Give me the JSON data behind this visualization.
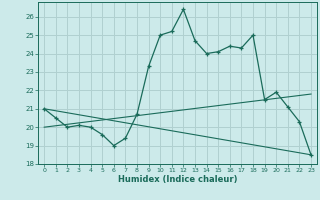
{
  "xlabel": "Humidex (Indice chaleur)",
  "bg_color": "#cceaea",
  "grid_color": "#b0d0d0",
  "line_color": "#1a6b5a",
  "xlim": [
    -0.5,
    23.5
  ],
  "ylim": [
    18,
    26.8
  ],
  "xticks": [
    0,
    1,
    2,
    3,
    4,
    5,
    6,
    7,
    8,
    9,
    10,
    11,
    12,
    13,
    14,
    15,
    16,
    17,
    18,
    19,
    20,
    21,
    22,
    23
  ],
  "yticks": [
    18,
    19,
    20,
    21,
    22,
    23,
    24,
    25,
    26
  ],
  "line1_x": [
    0,
    1,
    2,
    3,
    4,
    5,
    6,
    7,
    8,
    9,
    10,
    11,
    12,
    13,
    14,
    15,
    16,
    17,
    18,
    19,
    20,
    21,
    22,
    23
  ],
  "line1_y": [
    21.0,
    20.5,
    20.0,
    20.1,
    20.0,
    19.6,
    19.0,
    19.4,
    20.7,
    23.3,
    25.0,
    25.2,
    26.4,
    24.7,
    24.0,
    24.1,
    24.4,
    24.3,
    25.0,
    21.5,
    21.9,
    21.1,
    20.3,
    18.5
  ],
  "line2_x": [
    0,
    23
  ],
  "line2_y": [
    20.0,
    21.8
  ],
  "line3_x": [
    0,
    23
  ],
  "line3_y": [
    21.0,
    18.5
  ],
  "xlabel_fontsize": 6,
  "tick_fontsize": 5
}
